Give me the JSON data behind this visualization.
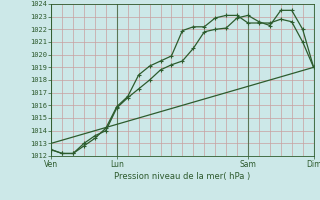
{
  "xlabel": "Pression niveau de la mer( hPa )",
  "ylim": [
    1012,
    1024
  ],
  "background_color": "#cce8e8",
  "grid_color": "#c8a0a0",
  "line_color": "#2d5c2d",
  "tick_label_color": "#2d5a2d",
  "xtick_labels": [
    "Ven",
    "Lun",
    "Sam",
    "Dim"
  ],
  "xtick_positions": [
    0,
    3,
    9,
    12
  ],
  "ytick_positions": [
    1012,
    1013,
    1014,
    1015,
    1016,
    1017,
    1018,
    1019,
    1020,
    1021,
    1022,
    1023,
    1024
  ],
  "line1_x": [
    0,
    0.5,
    1.0,
    1.5,
    2.0,
    2.5,
    3.0,
    3.5,
    4.0,
    4.5,
    5.0,
    5.5,
    6.0,
    6.5,
    7.0,
    7.5,
    8.0,
    8.5,
    9.0,
    9.5,
    10.0,
    10.5,
    11.0,
    11.5,
    12.0
  ],
  "line1_y": [
    1012.5,
    1012.2,
    1012.2,
    1013.0,
    1013.6,
    1014.0,
    1015.8,
    1016.6,
    1017.3,
    1018.0,
    1018.8,
    1019.2,
    1019.5,
    1020.5,
    1021.8,
    1022.0,
    1022.1,
    1022.9,
    1023.1,
    1022.6,
    1022.3,
    1023.5,
    1023.5,
    1022.0,
    1019.0
  ],
  "line2_x": [
    0,
    0.5,
    1.0,
    1.5,
    2.0,
    2.5,
    3.0,
    3.5,
    4.0,
    4.5,
    5.0,
    5.5,
    6.0,
    6.5,
    7.0,
    7.5,
    8.0,
    8.5,
    9.0,
    9.5,
    10.0,
    10.5,
    11.0,
    11.5,
    12.0
  ],
  "line2_y": [
    1012.5,
    1012.2,
    1012.2,
    1012.8,
    1013.4,
    1014.2,
    1015.9,
    1016.7,
    1018.4,
    1019.1,
    1019.5,
    1019.9,
    1021.9,
    1022.2,
    1022.2,
    1022.9,
    1023.1,
    1023.1,
    1022.5,
    1022.5,
    1022.5,
    1022.8,
    1022.6,
    1021.0,
    1019.0
  ],
  "line3_x": [
    0,
    12
  ],
  "line3_y": [
    1013.0,
    1019.0
  ],
  "vline_positions": [
    0,
    3,
    9,
    12
  ],
  "markersize": 2.5,
  "linewidth": 0.9,
  "linewidth_ref": 0.9
}
